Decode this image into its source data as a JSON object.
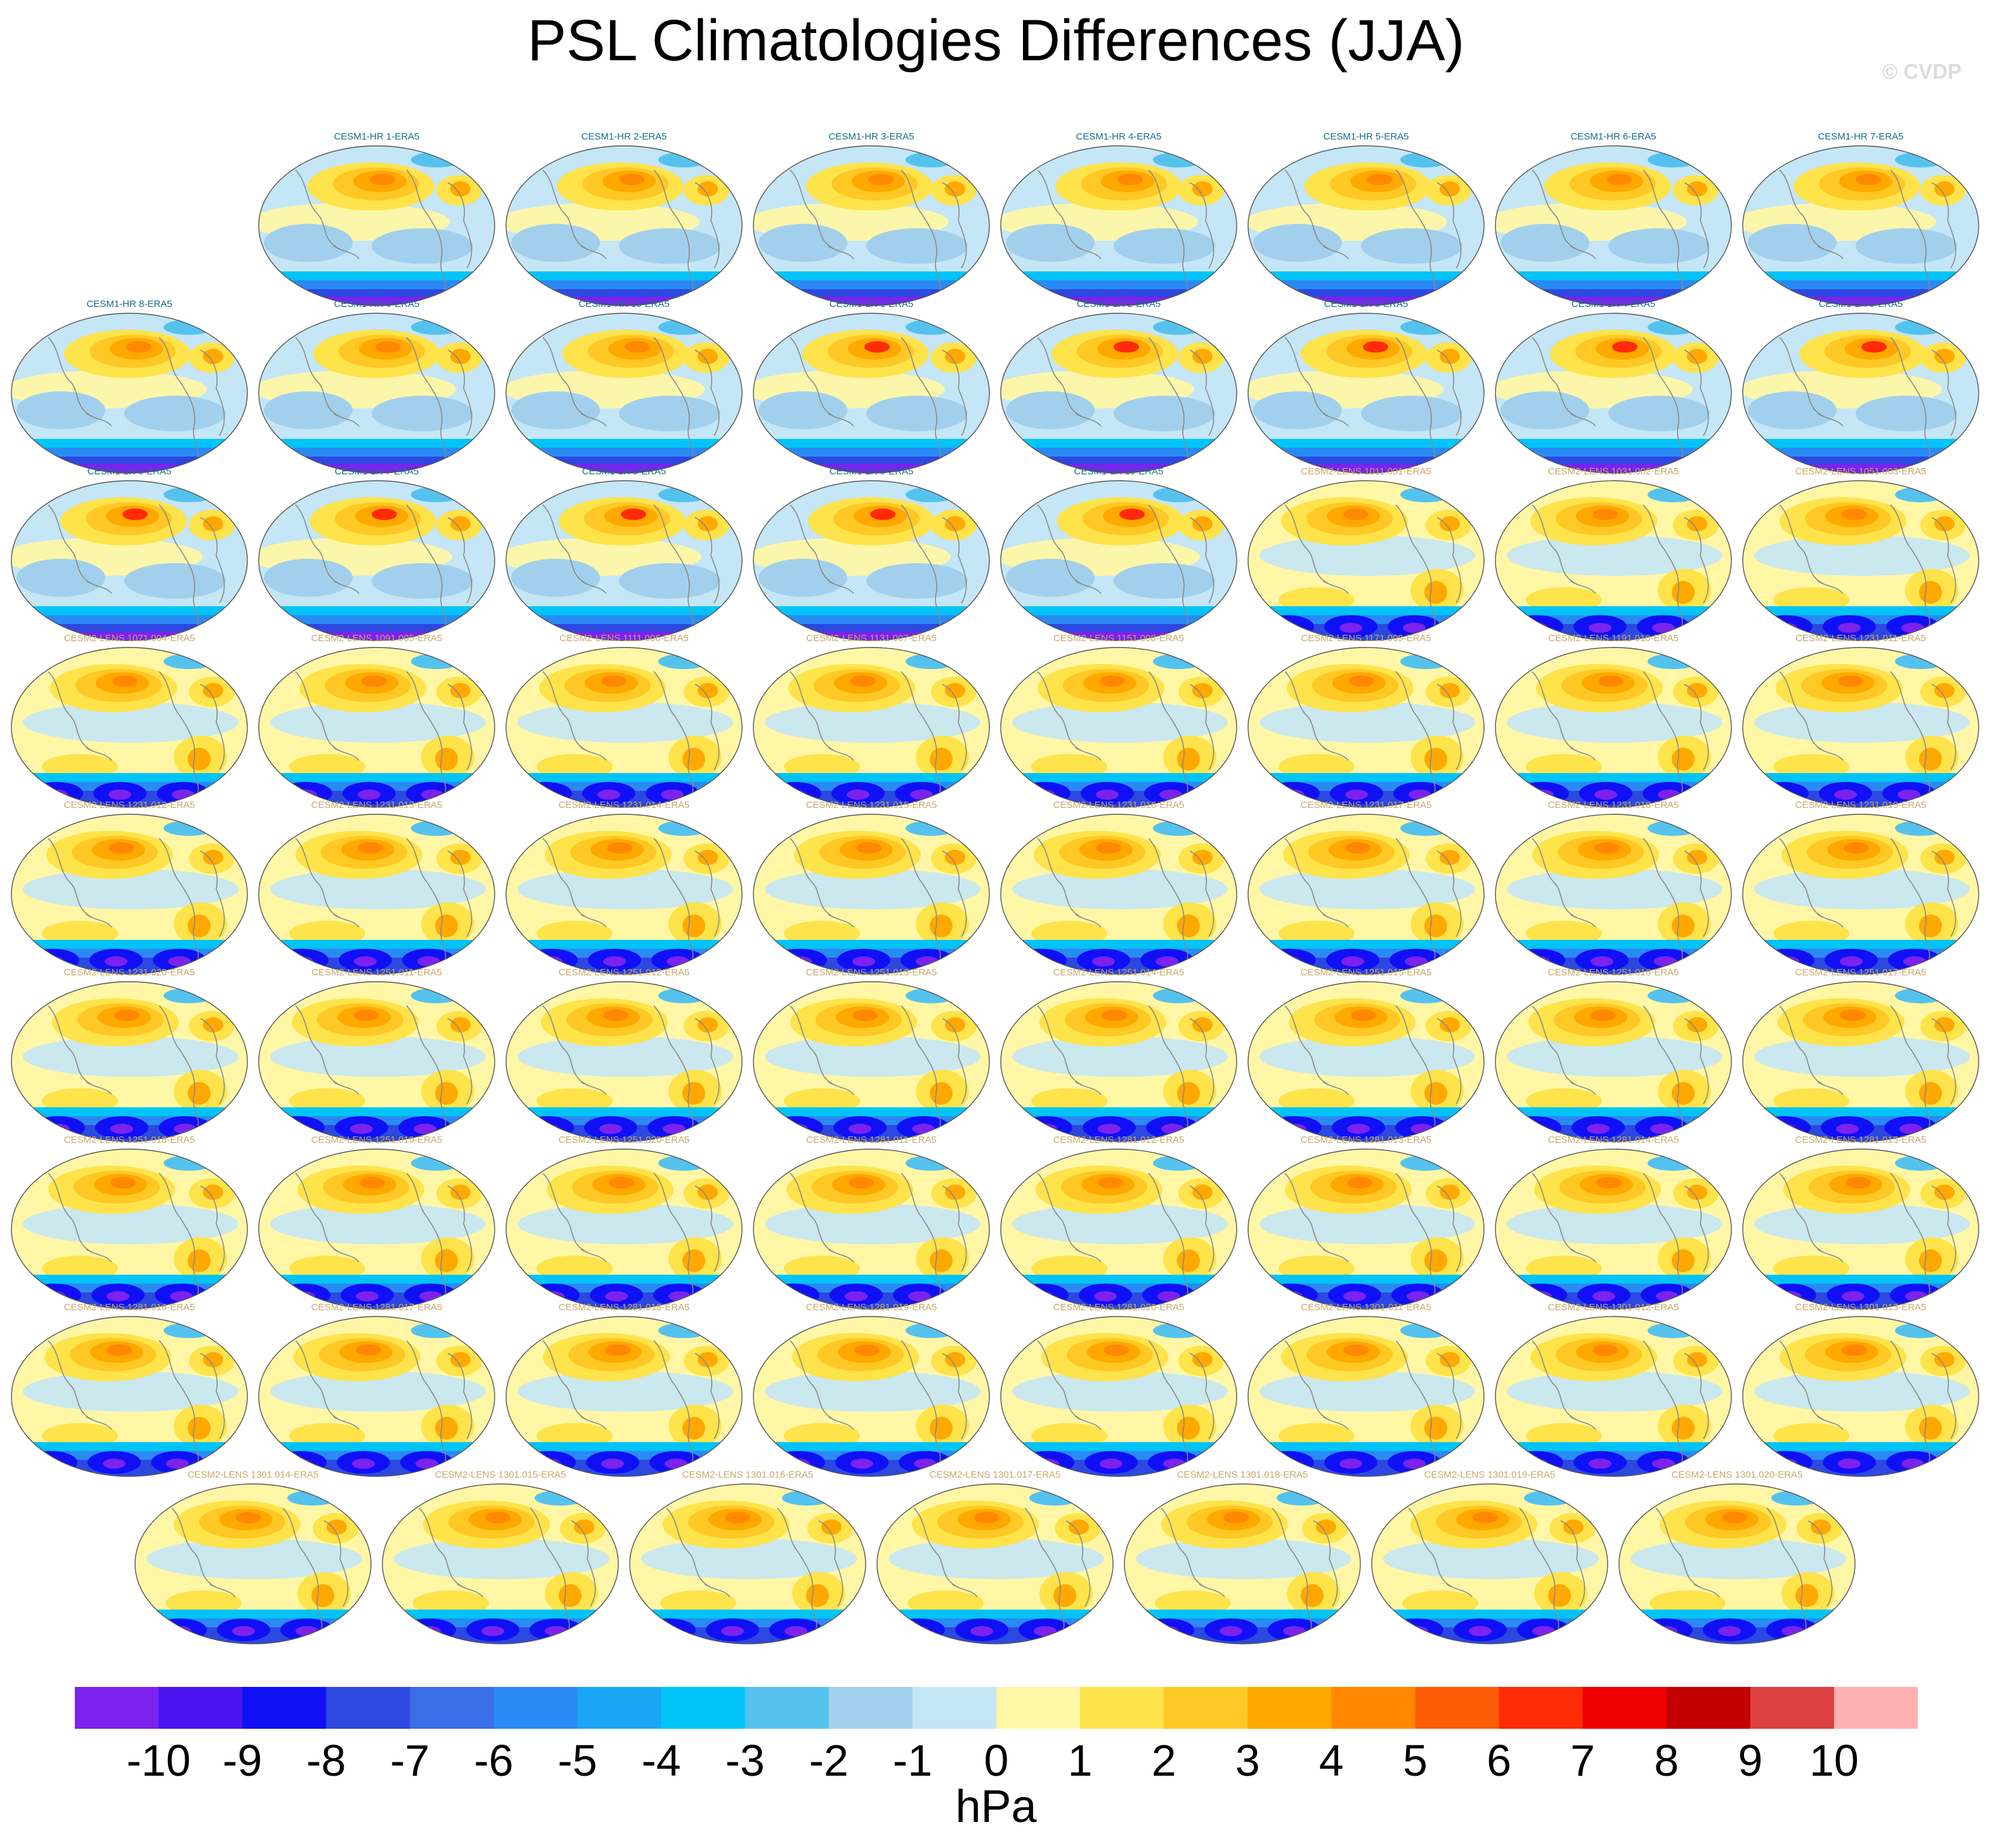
{
  "title": "PSL Climatologies Differences (JJA)",
  "watermark": "© CVDP",
  "colors": {
    "cesm1_title": "#1a6b8a",
    "cesm2_title": "#c8a86a",
    "coastline": "#8a8a8a"
  },
  "chart_data": {
    "type": "heatmap",
    "description_of_layout": "grid of global map panels",
    "panels": [
      "CESM1-HR 1-ERA5",
      "CESM1-HR 2-ERA5",
      "CESM1-HR 3-ERA5",
      "CESM1-HR 4-ERA5",
      "CESM1-HR 5-ERA5",
      "CESM1-HR 6-ERA5",
      "CESM1-HR 7-ERA5",
      "CESM1-HR 8-ERA5",
      "CESM1-HR 9-ERA5",
      "CESM1-HR 10-ERA5",
      "CESM1-LR 1-ERA5",
      "CESM1-LR 2-ERA5",
      "CESM1-LR 3-ERA5",
      "CESM1-LR 4-ERA5",
      "CESM1-LR 5-ERA5",
      "CESM1-LR 6-ERA5",
      "CESM1-LR 7-ERA5",
      "CESM1-LR 8-ERA5",
      "CESM1-LR 9-ERA5",
      "CESM1-LR 10-ERA5",
      "CESM2-LENS 1011.001-ERA5",
      "CESM2-LENS 1031.002-ERA5",
      "CESM2-LENS 1051.003-ERA5",
      "CESM2-LENS 1071.004-ERA5",
      "CESM2-LENS 1091.005-ERA5",
      "CESM2-LENS 1111.006-ERA5",
      "CESM2-LENS 1131.007-ERA5",
      "CESM2-LENS 1151.008-ERA5",
      "CESM2-LENS 1171.009-ERA5",
      "CESM2-LENS 1191.010-ERA5",
      "CESM2-LENS 1231.011-ERA5",
      "CESM2-LENS 1231.012-ERA5",
      "CESM2-LENS 1231.013-ERA5",
      "CESM2-LENS 1231.014-ERA5",
      "CESM2-LENS 1231.015-ERA5",
      "CESM2-LENS 1231.016-ERA5",
      "CESM2-LENS 1231.017-ERA5",
      "CESM2-LENS 1231.018-ERA5",
      "CESM2-LENS 1231.019-ERA5",
      "CESM2-LENS 1231.020-ERA5",
      "CESM2-LENS 1251.011-ERA5",
      "CESM2-LENS 1251.012-ERA5",
      "CESM2-LENS 1251.013-ERA5",
      "CESM2-LENS 1251.014-ERA5",
      "CESM2-LENS 1251.015-ERA5",
      "CESM2-LENS 1251.016-ERA5",
      "CESM2-LENS 1251.017-ERA5",
      "CESM2-LENS 1251.018-ERA5",
      "CESM2-LENS 1251.019-ERA5",
      "CESM2-LENS 1251.020-ERA5",
      "CESM2-LENS 1281.011-ERA5",
      "CESM2-LENS 1281.012-ERA5",
      "CESM2-LENS 1281.013-ERA5",
      "CESM2-LENS 1281.014-ERA5",
      "CESM2-LENS 1281.015-ERA5",
      "CESM2-LENS 1281.016-ERA5",
      "CESM2-LENS 1281.017-ERA5",
      "CESM2-LENS 1281.018-ERA5",
      "CESM2-LENS 1281.019-ERA5",
      "CESM2-LENS 1281.020-ERA5",
      "CESM2-LENS 1301.011-ERA5",
      "CESM2-LENS 1301.012-ERA5",
      "CESM2-LENS 1301.013-ERA5",
      "CESM2-LENS 1301.014-ERA5",
      "CESM2-LENS 1301.015-ERA5",
      "CESM2-LENS 1301.016-ERA5",
      "CESM2-LENS 1301.017-ERA5",
      "CESM2-LENS 1301.018-ERA5",
      "CESM2-LENS 1301.019-ERA5",
      "CESM2-LENS 1301.020-ERA5"
    ],
    "colorbar": {
      "unit": "hPa",
      "tick_labels": [
        "-10",
        "-9",
        "-8",
        "-7",
        "-6",
        "-5",
        "-4",
        "-3",
        "-2",
        "-1",
        "0",
        "1",
        "2",
        "3",
        "4",
        "5",
        "6",
        "7",
        "8",
        "9",
        "10"
      ],
      "colors": [
        "#7b22ee",
        "#4a14ee",
        "#1010f5",
        "#2c48e0",
        "#3a6ee6",
        "#2a8af4",
        "#1aa6f6",
        "#00c4f8",
        "#55c2ee",
        "#a2d0ec",
        "#c4e6f6",
        "#fff7a6",
        "#ffe34a",
        "#ffc824",
        "#ffa800",
        "#ff8800",
        "#ff5c08",
        "#ff2a06",
        "#ee0000",
        "#c40000",
        "#dc4040",
        "#ffb0b0"
      ],
      "range": [
        -10,
        10
      ]
    }
  }
}
